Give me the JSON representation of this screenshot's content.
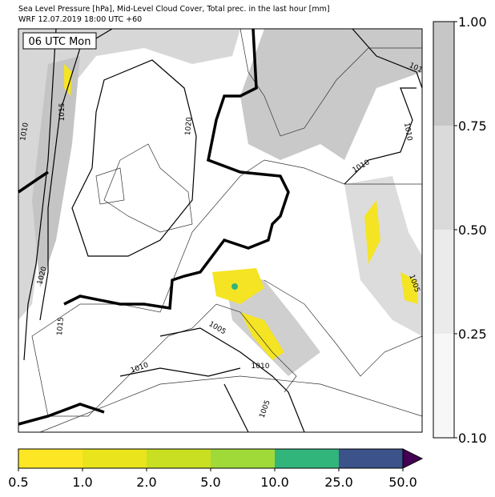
{
  "header": {
    "title": "Sea Level Pressure [hPa], Mid-Level Cloud Cover, Total prec. in the last hour [mm]",
    "subtitle": "WRF 12.07.2019 18:00 UTC +60"
  },
  "time_label": "06 UTC Mon",
  "contour_labels": [
    "1015",
    "1010",
    "1020",
    "1020",
    "1015",
    "1010",
    "1010",
    "101",
    "1010",
    "1005",
    "1010",
    "1005",
    "1005"
  ],
  "cloud_colorbar": {
    "colors": [
      "#f7f7f7",
      "#ebebeb",
      "#dadada",
      "#c6c6c6"
    ],
    "ticks": [
      "0.10",
      "0.25",
      "0.50",
      "0.75",
      "1.00"
    ]
  },
  "precip_colorbar": {
    "colors": [
      "#fde725",
      "#e9e41c",
      "#c9df22",
      "#a0da39",
      "#31b57b",
      "#3b528b"
    ],
    "extend_color": "#440154",
    "ticks": [
      "0.5",
      "1.0",
      "2.0",
      "5.0",
      "10.0",
      "25.0",
      "50.0"
    ]
  }
}
